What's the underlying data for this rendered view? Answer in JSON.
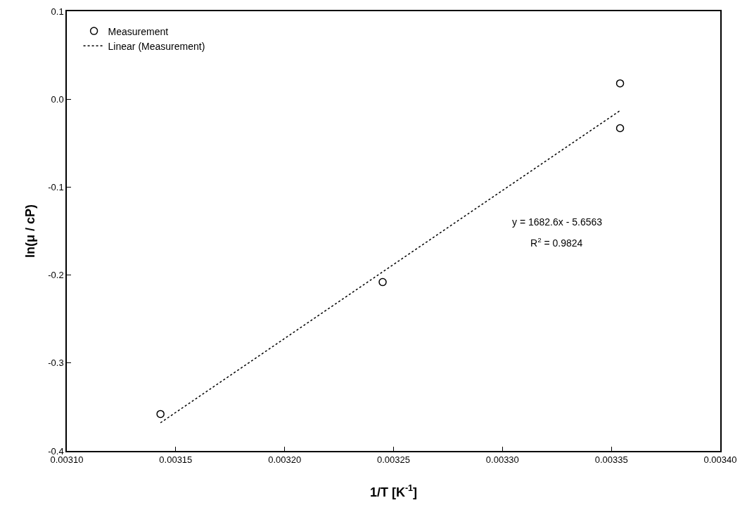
{
  "chart_data": {
    "type": "scatter",
    "xlabel": "1/T [K$^{-1}$]",
    "ylabel": "ln(μ / cP)",
    "series": [
      {
        "name": "Measurement",
        "color": "#000000",
        "marker": "circle",
        "x": [
          0.003143,
          0.003245,
          0.003354,
          0.003354
        ],
        "values": [
          -0.358,
          -0.208,
          0.018,
          -0.033
        ]
      },
      {
        "name": "Linear (Measurement)",
        "type": "line",
        "color": "#000000",
        "marker": "none",
        "line_style": "dotted",
        "x": [
          0.003143,
          0.003354
        ],
        "values": [
          -0.368,
          -0.013
        ]
      }
    ],
    "annotations": [
      "y = 1682.6x - 5.6563",
      "R$^{2}$ = 0.9824"
    ],
    "xlim": [
      0.0031,
      0.0034
    ],
    "xticks": [
      {
        "value": 0.0031,
        "label": "0.00310"
      },
      {
        "value": 0.00315,
        "label": "0.00315"
      },
      {
        "value": 0.0032,
        "label": "0.00320"
      },
      {
        "value": 0.00325,
        "label": "0.00325"
      },
      {
        "value": 0.0033,
        "label": "0.00330"
      },
      {
        "value": 0.00335,
        "label": "0.00335"
      },
      {
        "value": 0.0034,
        "label": "0.00340"
      }
    ],
    "ylim": [
      -0.4,
      0.1
    ],
    "yticks": [
      -0.4,
      -0.3,
      -0.2,
      -0.1,
      {
        "value": 0,
        "label": "0.0"
      },
      0.1
    ],
    "grid": false,
    "legend": "top left"
  }
}
